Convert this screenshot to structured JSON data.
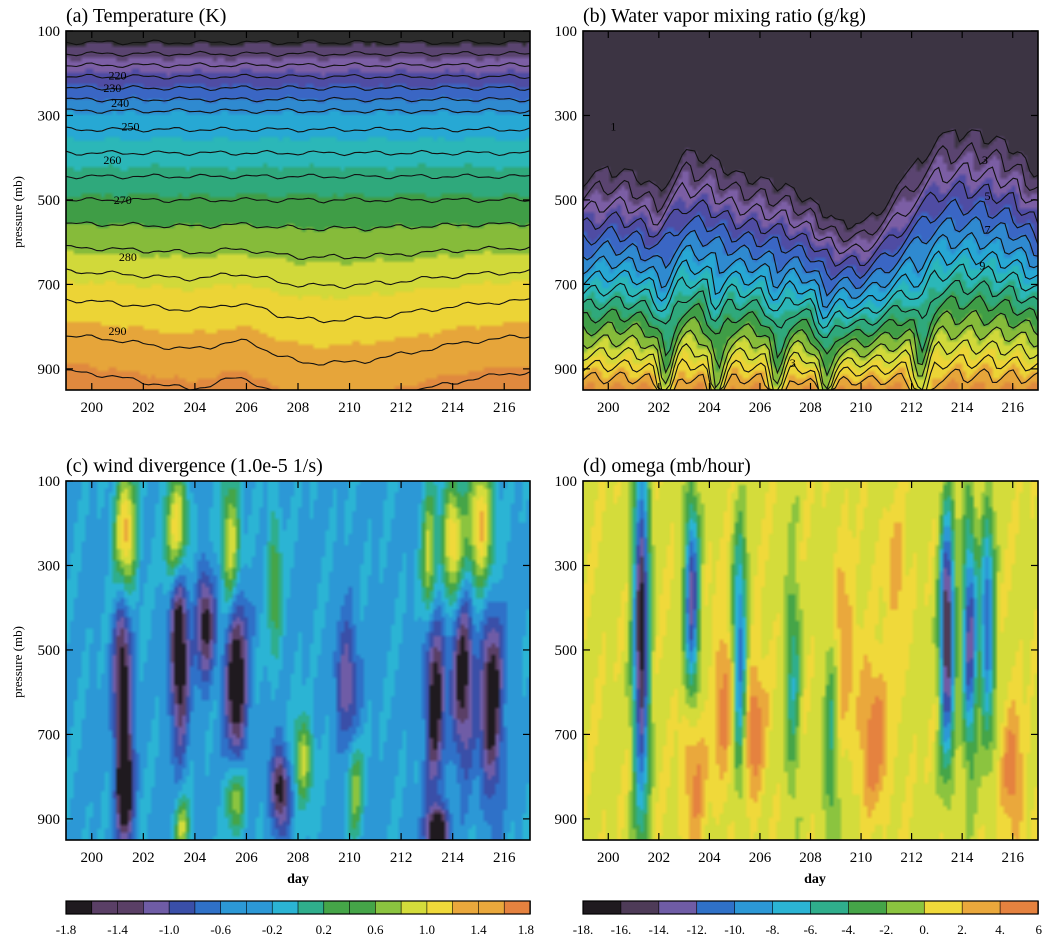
{
  "colors": {
    "temperature": [
      "#2b2b2b",
      "#5a4470",
      "#7b5ea4",
      "#4f4ca3",
      "#3a66c4",
      "#2f8ad0",
      "#27a8d4",
      "#2bb7b8",
      "#2fa97c",
      "#3f9d46",
      "#86bb3a",
      "#d1d93a",
      "#ecd436",
      "#e6a53a",
      "#e0893e"
    ],
    "moisture": [
      "#3c3443",
      "#5a4470",
      "#7b5ea4",
      "#4f4ca3",
      "#3a66c4",
      "#2f8ad0",
      "#27a8d4",
      "#2bb7b8",
      "#2fa97c",
      "#3f9d46",
      "#86bb3a",
      "#d1d93a",
      "#ecd436",
      "#e6a53a",
      "#e0893e"
    ],
    "divergence": [
      "#1f1a1f",
      "#5a3f66",
      "#6f5ca6",
      "#3a4fa8",
      "#2f71c8",
      "#2c98d6",
      "#2bb4d4",
      "#2fae8c",
      "#45a548",
      "#8bc43f",
      "#d4dc3b",
      "#f0d93a",
      "#eaa83c",
      "#e5823f"
    ],
    "omega": [
      "#1f1a1f",
      "#4e3b58",
      "#6f5ca6",
      "#3a4fa8",
      "#2f71c8",
      "#2c98d6",
      "#2bb4d4",
      "#2fae8c",
      "#45a548",
      "#8bc43f",
      "#d4dc3b",
      "#f0d93a",
      "#eaa83c",
      "#e5823f"
    ]
  },
  "chart_data": [
    {
      "type": "heatmap",
      "title": "(a) Temperature (K)",
      "xlabel": "",
      "ylabel": "pressure (mb)",
      "x_ticks": [
        "200",
        "202",
        "204",
        "206",
        "208",
        "210",
        "212",
        "214",
        "216"
      ],
      "y_ticks": [
        "100",
        "300",
        "500",
        "700",
        "900"
      ],
      "xlim": [
        199,
        217
      ],
      "ylim": [
        950,
        100
      ],
      "y_inverted": true,
      "contour_labels": [
        "220",
        "230",
        "240",
        "250",
        "260",
        "270",
        "280",
        "290"
      ],
      "contour_label_values": [
        220,
        230,
        240,
        250,
        260,
        270,
        280,
        290
      ],
      "contour_label_positions": [
        [
          201.0,
          215
        ],
        [
          200.8,
          245
        ],
        [
          201.1,
          280
        ],
        [
          201.5,
          335
        ],
        [
          200.8,
          415
        ],
        [
          201.2,
          510
        ],
        [
          201.4,
          645
        ],
        [
          201.0,
          820
        ]
      ],
      "contour_interval": 5,
      "value_range": [
        210,
        300
      ],
      "profile_levels": [
        100,
        300,
        500,
        700,
        950
      ],
      "profile_values": [
        210,
        247,
        265,
        283,
        298
      ],
      "features": [
        {
          "type": "warm_dome",
          "x_center": 209.3,
          "x_halfwidth": 3.6,
          "amplitude_hpa": 80
        },
        {
          "type": "warm_dome",
          "x_center": 203.3,
          "x_halfwidth": 2.4,
          "amplitude_hpa": 25
        },
        {
          "type": "trough",
          "x_center": 205.8,
          "x_halfwidth": 0.9,
          "amplitude_hpa": 40
        }
      ],
      "legend": null
    },
    {
      "type": "heatmap",
      "title": "(b) Water vapor mixing ratio (g/kg)",
      "xlabel": "",
      "ylabel": "",
      "x_ticks": [
        "200",
        "202",
        "204",
        "206",
        "208",
        "210",
        "212",
        "214",
        "216"
      ],
      "y_ticks": [
        "100",
        "300",
        "500",
        "700",
        "900"
      ],
      "xlim": [
        199,
        217
      ],
      "ylim": [
        950,
        100
      ],
      "y_inverted": true,
      "contour_labels": [
        "1",
        "3",
        "5",
        "7",
        "9",
        "3"
      ],
      "contour_label_values": [
        1,
        3,
        5,
        7,
        9,
        3
      ],
      "contour_label_positions": [
        [
          200.2,
          335
        ],
        [
          214.9,
          415
        ],
        [
          215.0,
          500
        ],
        [
          215.0,
          580
        ],
        [
          214.8,
          665
        ],
        [
          207.3,
          895
        ]
      ],
      "contour_interval": 1,
      "value_range": [
        0,
        18
      ],
      "dry_layer_base_days": [
        199,
        200,
        201,
        202,
        203,
        204,
        205,
        206,
        207,
        208,
        209,
        210,
        211,
        212,
        213,
        214,
        215,
        216,
        217
      ],
      "dry_layer_base_hpa": [
        445,
        420,
        430,
        470,
        380,
        390,
        430,
        445,
        460,
        495,
        545,
        555,
        500,
        420,
        345,
        330,
        340,
        365,
        435
      ],
      "moist_bands_hpa": [
        [
          700,
          760,
          800,
          870
        ],
        [
          795,
          850,
          900,
          935
        ]
      ],
      "dry_slots_days": [
        202.3,
        204.3,
        206.7,
        208.6,
        212.4
      ],
      "legend": null
    },
    {
      "type": "heatmap",
      "title": "(c) wind divergence (1.0e-5 1/s)",
      "xlabel": "day",
      "ylabel": "pressure (mb)",
      "x_ticks": [
        "200",
        "202",
        "204",
        "206",
        "208",
        "210",
        "212",
        "214",
        "216"
      ],
      "y_ticks": [
        "100",
        "300",
        "500",
        "700",
        "900"
      ],
      "xlim": [
        199,
        217
      ],
      "ylim": [
        950,
        100
      ],
      "y_inverted": true,
      "colorbar": {
        "tick_labels": [
          "-1.8",
          "-1.4",
          "-1.0",
          "-0.6",
          "-0.2",
          "0.2",
          "0.6",
          "1.0",
          "1.4",
          "1.8"
        ],
        "min": -1.8,
        "max": 1.8,
        "interval": 0.2
      },
      "background_value": -0.3,
      "features": [
        {
          "x": 201.3,
          "p": 230,
          "value": 1.8,
          "sx": 0.3,
          "sp": 110
        },
        {
          "x": 203.3,
          "p": 220,
          "value": 1.7,
          "sx": 0.3,
          "sp": 90
        },
        {
          "x": 205.4,
          "p": 260,
          "value": 1.5,
          "sx": 0.25,
          "sp": 110
        },
        {
          "x": 207.1,
          "p": 340,
          "value": 0.8,
          "sx": 0.2,
          "sp": 120
        },
        {
          "x": 213.1,
          "p": 300,
          "value": 1.4,
          "sx": 0.2,
          "sp": 110
        },
        {
          "x": 214.0,
          "p": 240,
          "value": 1.6,
          "sx": 0.3,
          "sp": 100
        },
        {
          "x": 215.1,
          "p": 210,
          "value": 1.7,
          "sx": 0.35,
          "sp": 110
        },
        {
          "x": 203.4,
          "p": 500,
          "value": -1.8,
          "sx": 0.25,
          "sp": 150
        },
        {
          "x": 204.4,
          "p": 440,
          "value": -1.4,
          "sx": 0.25,
          "sp": 90
        },
        {
          "x": 205.6,
          "p": 560,
          "value": -1.7,
          "sx": 0.3,
          "sp": 150
        },
        {
          "x": 201.2,
          "p": 600,
          "value": -1.6,
          "sx": 0.25,
          "sp": 180
        },
        {
          "x": 201.3,
          "p": 840,
          "value": -1.6,
          "sx": 0.2,
          "sp": 80
        },
        {
          "x": 207.3,
          "p": 830,
          "value": -1.5,
          "sx": 0.25,
          "sp": 70
        },
        {
          "x": 213.3,
          "p": 600,
          "value": -1.6,
          "sx": 0.25,
          "sp": 160
        },
        {
          "x": 214.4,
          "p": 570,
          "value": -1.5,
          "sx": 0.3,
          "sp": 140
        },
        {
          "x": 215.5,
          "p": 620,
          "value": -1.6,
          "sx": 0.3,
          "sp": 160
        },
        {
          "x": 213.4,
          "p": 930,
          "value": -1.8,
          "sx": 0.3,
          "sp": 40
        },
        {
          "x": 208.2,
          "p": 760,
          "value": 1.2,
          "sx": 0.25,
          "sp": 70
        },
        {
          "x": 210.2,
          "p": 820,
          "value": 1.0,
          "sx": 0.2,
          "sp": 80
        },
        {
          "x": 205.6,
          "p": 850,
          "value": 1.2,
          "sx": 0.25,
          "sp": 60
        },
        {
          "x": 203.5,
          "p": 920,
          "value": 1.1,
          "sx": 0.2,
          "sp": 50
        },
        {
          "x": 209.9,
          "p": 580,
          "value": -1.0,
          "sx": 0.3,
          "sp": 110
        }
      ],
      "legend": null
    },
    {
      "type": "heatmap",
      "title": "(d) omega (mb/hour)",
      "xlabel": "day",
      "ylabel": "",
      "x_ticks": [
        "200",
        "202",
        "204",
        "206",
        "208",
        "210",
        "212",
        "214",
        "216"
      ],
      "y_ticks": [
        "100",
        "300",
        "500",
        "700",
        "900"
      ],
      "xlim": [
        199,
        217
      ],
      "ylim": [
        950,
        100
      ],
      "y_inverted": true,
      "colorbar": {
        "tick_labels": [
          "-18.",
          "-16.",
          "-14.",
          "-12.",
          "-10.",
          "-8.",
          "-6.",
          "-4.",
          "-2.",
          "0.",
          "2.",
          "4.",
          "6"
        ],
        "min": -18,
        "max": 6,
        "interval": 2
      },
      "background_value": 0.5,
      "features": [
        {
          "x": 201.3,
          "p": 460,
          "value": -18,
          "sx": 0.22,
          "sp": 300
        },
        {
          "x": 203.3,
          "p": 380,
          "value": -14,
          "sx": 0.2,
          "sp": 170
        },
        {
          "x": 205.2,
          "p": 520,
          "value": -12,
          "sx": 0.2,
          "sp": 200
        },
        {
          "x": 213.4,
          "p": 460,
          "value": -18,
          "sx": 0.2,
          "sp": 200
        },
        {
          "x": 214.3,
          "p": 470,
          "value": -14,
          "sx": 0.2,
          "sp": 190
        },
        {
          "x": 215.0,
          "p": 440,
          "value": -12,
          "sx": 0.2,
          "sp": 180
        },
        {
          "x": 207.3,
          "p": 560,
          "value": -6,
          "sx": 0.2,
          "sp": 200
        },
        {
          "x": 208.8,
          "p": 720,
          "value": -5,
          "sx": 0.2,
          "sp": 220
        },
        {
          "x": 203.4,
          "p": 780,
          "value": 5,
          "sx": 0.3,
          "sp": 120
        },
        {
          "x": 204.6,
          "p": 620,
          "value": 4.5,
          "sx": 0.3,
          "sp": 150
        },
        {
          "x": 205.7,
          "p": 680,
          "value": 5.5,
          "sx": 0.35,
          "sp": 120
        },
        {
          "x": 209.3,
          "p": 480,
          "value": 4,
          "sx": 0.3,
          "sp": 130
        },
        {
          "x": 210.5,
          "p": 700,
          "value": 5.5,
          "sx": 0.4,
          "sp": 120
        },
        {
          "x": 211.4,
          "p": 330,
          "value": 3.5,
          "sx": 0.25,
          "sp": 100
        },
        {
          "x": 216.0,
          "p": 800,
          "value": 5,
          "sx": 0.3,
          "sp": 110
        }
      ],
      "legend": null
    }
  ]
}
